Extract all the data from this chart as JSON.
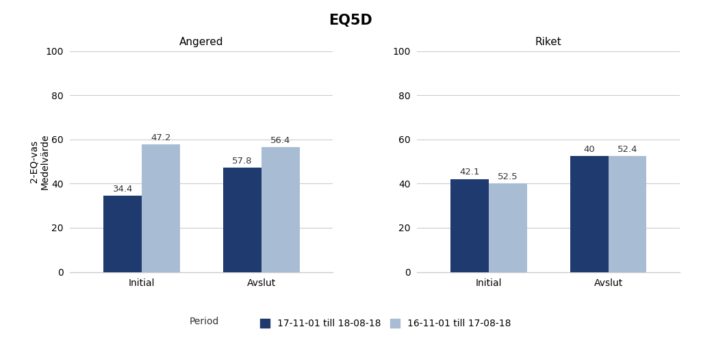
{
  "title": "EQ5D",
  "subplot_titles": [
    "Angered",
    "Riket"
  ],
  "categories": [
    "Initial",
    "Avslut"
  ],
  "series": [
    {
      "label": "17-11-01 till 18-08-18",
      "color": "#1f3a6e",
      "angered": [
        34.4,
        47.2
      ],
      "riket": [
        42.1,
        52.5
      ]
    },
    {
      "label": "16-11-01 till 17-08-18",
      "color": "#a8bdd4",
      "angered": [
        57.8,
        56.4
      ],
      "riket": [
        40,
        52.4
      ]
    }
  ],
  "angered_labels": [
    "34.4",
    "57.8",
    "47.2",
    "56.4"
  ],
  "riket_labels": [
    "42.1",
    "40",
    "52.5",
    "52.4"
  ],
  "ylabel": "2-EQ-vas\nMedelvärde",
  "ylim": [
    0,
    100
  ],
  "yticks": [
    0,
    20,
    40,
    60,
    80,
    100
  ],
  "legend_title": "Period",
  "bar_width": 0.32,
  "background_color": "#ffffff",
  "grid_color": "#cccccc",
  "title_fontsize": 15,
  "subtitle_fontsize": 11,
  "label_fontsize": 10,
  "tick_fontsize": 10,
  "value_fontsize": 9.5
}
